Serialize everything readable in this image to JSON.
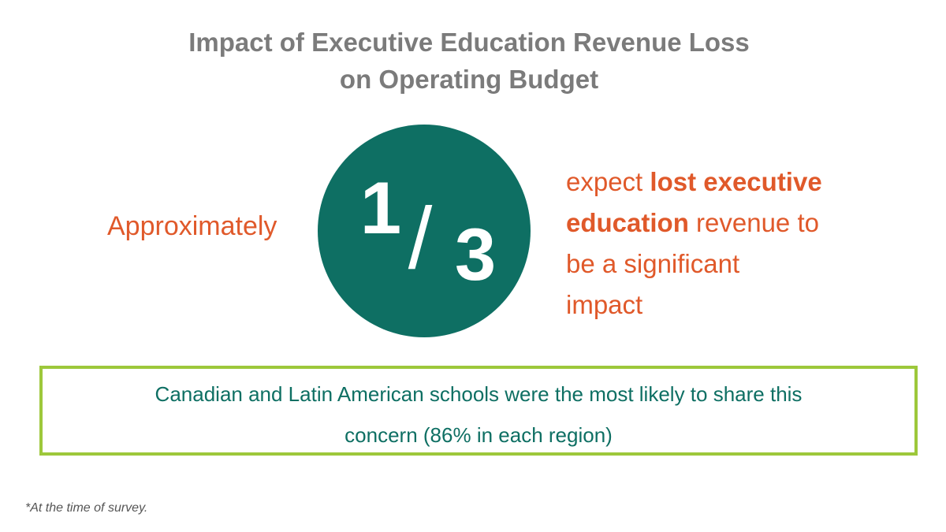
{
  "header": {
    "title_lines": [
      "Impact of Executive Education Revenue Loss",
      "on Operating Budget"
    ]
  },
  "lead": "Approximately",
  "fraction": {
    "numerator": "1",
    "slash": "/",
    "denominator": "3"
  },
  "statement": {
    "lines": [
      [
        {
          "text": "expect "
        },
        {
          "text": "lost executive",
          "bold": true
        }
      ],
      [
        {
          "text": "education",
          "bold": true
        },
        {
          "text": " revenue to"
        }
      ],
      [
        {
          "text": "be a significant"
        }
      ],
      [
        {
          "text": "impact"
        }
      ]
    ]
  },
  "callout": {
    "lines": [
      "Canadian and Latin American schools were the most likely to share this",
      "concern (86% in each region)"
    ]
  },
  "footnote": "*At the time of survey."
}
